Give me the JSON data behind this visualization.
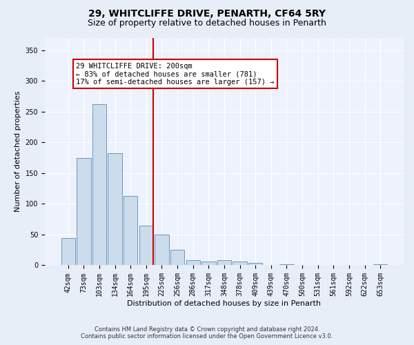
{
  "title": "29, WHITCLIFFE DRIVE, PENARTH, CF64 5RY",
  "subtitle": "Size of property relative to detached houses in Penarth",
  "xlabel": "Distribution of detached houses by size in Penarth",
  "ylabel": "Number of detached properties",
  "bar_labels": [
    "42sqm",
    "73sqm",
    "103sqm",
    "134sqm",
    "164sqm",
    "195sqm",
    "225sqm",
    "256sqm",
    "286sqm",
    "317sqm",
    "348sqm",
    "378sqm",
    "409sqm",
    "439sqm",
    "470sqm",
    "500sqm",
    "531sqm",
    "561sqm",
    "592sqm",
    "622sqm",
    "653sqm"
  ],
  "bar_values": [
    44,
    175,
    262,
    183,
    113,
    65,
    50,
    25,
    8,
    6,
    8,
    6,
    4,
    1,
    2,
    1,
    1,
    0,
    0,
    1,
    2
  ],
  "bar_color": "#ccdcec",
  "bar_edgecolor": "#6699bb",
  "vline_index": 5,
  "vline_color": "#cc0000",
  "annotation_text": "29 WHITCLIFFE DRIVE: 200sqm\n← 83% of detached houses are smaller (781)\n17% of semi-detached houses are larger (157) →",
  "annotation_box_facecolor": "#ffffff",
  "annotation_box_edgecolor": "#cc0000",
  "ylim": [
    0,
    370
  ],
  "yticks": [
    0,
    50,
    100,
    150,
    200,
    250,
    300,
    350
  ],
  "footer_line1": "Contains HM Land Registry data © Crown copyright and database right 2024.",
  "footer_line2": "Contains public sector information licensed under the Open Government Licence v3.0.",
  "bg_color": "#e8eef8",
  "plot_bg_color": "#eef2fc",
  "grid_color": "#ffffff",
  "title_fontsize": 10,
  "subtitle_fontsize": 9,
  "xlabel_fontsize": 8,
  "ylabel_fontsize": 8,
  "tick_fontsize": 7,
  "annotation_fontsize": 7.5,
  "footer_fontsize": 6
}
